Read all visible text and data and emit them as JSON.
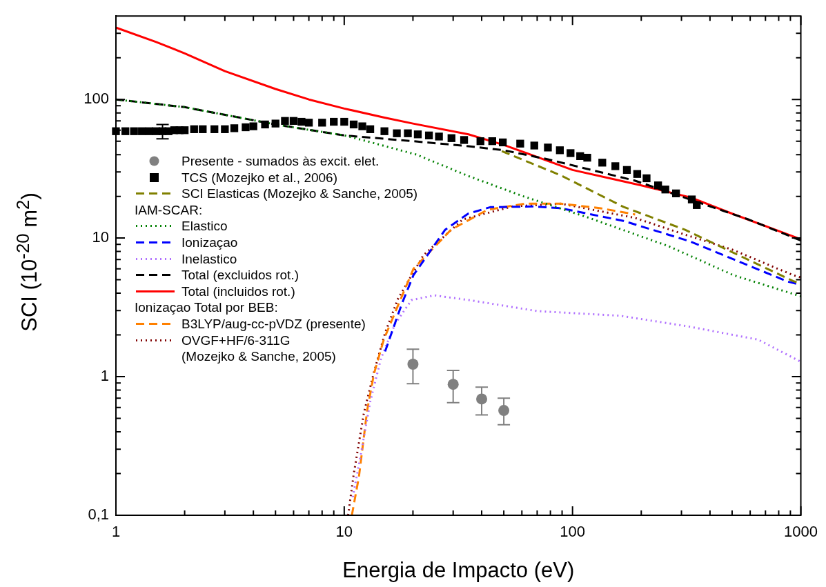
{
  "chart_data": {
    "type": "line",
    "xlabel": "Energia de Impacto (eV)",
    "ylabel": "SCI (10$^{-20}$ m$^{2}$)",
    "log": "xy",
    "grid": false,
    "legend": "left",
    "annotations": [
      "IAM-SCAR:",
      "Ionizaçao Total por BEB:"
    ],
    "xlim": [
      1,
      1000
    ],
    "ylim": [
      0.1,
      400
    ],
    "xticks": [
      1,
      {
        "value": 2,
        "label": null
      },
      {
        "value": 3,
        "label": null
      },
      {
        "value": 4,
        "label": null
      },
      {
        "value": 5,
        "label": null
      },
      {
        "value": 6,
        "label": null
      },
      {
        "value": 7,
        "label": null
      },
      {
        "value": 8,
        "label": null
      },
      {
        "value": 9,
        "label": null
      },
      10,
      {
        "value": 20,
        "label": null
      },
      {
        "value": 30,
        "label": null
      },
      {
        "value": 40,
        "label": null
      },
      {
        "value": 50,
        "label": null
      },
      {
        "value": 60,
        "label": null
      },
      {
        "value": 70,
        "label": null
      },
      {
        "value": 80,
        "label": null
      },
      {
        "value": 90,
        "label": null
      },
      100,
      {
        "value": 200,
        "label": null
      },
      {
        "value": 300,
        "label": null
      },
      {
        "value": 400,
        "label": null
      },
      {
        "value": 500,
        "label": null
      },
      {
        "value": 600,
        "label": null
      },
      {
        "value": 700,
        "label": null
      },
      {
        "value": 800,
        "label": null
      },
      {
        "value": 900,
        "label": null
      },
      1000
    ],
    "yticks": [
      {
        "value": 0.1,
        "label": "0,1"
      },
      {
        "value": 0.2,
        "label": null
      },
      {
        "value": 0.3,
        "label": null
      },
      {
        "value": 0.4,
        "label": null
      },
      {
        "value": 0.5,
        "label": null
      },
      {
        "value": 0.6,
        "label": null
      },
      {
        "value": 0.7,
        "label": null
      },
      {
        "value": 0.8,
        "label": null
      },
      {
        "value": 0.9,
        "label": null
      },
      1,
      {
        "value": 2,
        "label": null
      },
      {
        "value": 3,
        "label": null
      },
      {
        "value": 4,
        "label": null
      },
      {
        "value": 5,
        "label": null
      },
      {
        "value": 6,
        "label": null
      },
      {
        "value": 7,
        "label": null
      },
      {
        "value": 8,
        "label": null
      },
      {
        "value": 9,
        "label": null
      },
      10,
      {
        "value": 20,
        "label": null
      },
      {
        "value": 30,
        "label": null
      },
      {
        "value": 40,
        "label": null
      },
      {
        "value": 50,
        "label": null
      },
      {
        "value": 60,
        "label": null
      },
      {
        "value": 70,
        "label": null
      },
      {
        "value": 80,
        "label": null
      },
      {
        "value": 90,
        "label": null
      },
      100,
      {
        "value": 200,
        "label": null
      },
      {
        "value": 300,
        "label": null
      }
    ],
    "series": [
      {
        "name": "Presente - sumados às excit. elet.",
        "type": "scatter",
        "marker": "circle",
        "color": "#808080",
        "x": [
          20,
          30,
          40,
          50
        ],
        "values": [
          1.23,
          0.88,
          0.69,
          0.57
        ],
        "errors": [
          [
            0.89,
            1.58
          ],
          [
            0.65,
            1.11
          ],
          [
            0.53,
            0.84
          ],
          [
            0.45,
            0.7
          ]
        ]
      },
      {
        "name": "TCS (Mozejko et al., 2006)",
        "type": "scatter",
        "marker": "square",
        "color": "#000000",
        "x": [
          1,
          1.1,
          1.2,
          1.3,
          1.4,
          1.5,
          1.6,
          1.7,
          1.8,
          1.9,
          2,
          2.2,
          2.4,
          2.7,
          3,
          3.3,
          3.7,
          4,
          4.5,
          5,
          5.5,
          6,
          6.5,
          7,
          8,
          9,
          10,
          11,
          12,
          13,
          15,
          17,
          19,
          21,
          23.5,
          26,
          29.5,
          33.5,
          39.5,
          44.5,
          49.5,
          59,
          68,
          78,
          88,
          98,
          108,
          116,
          135,
          154,
          173,
          192,
          211,
          237,
          255,
          284,
          333,
          350
        ],
        "values": [
          59,
          59,
          59,
          59,
          59,
          59,
          59,
          59,
          60,
          60,
          60,
          61,
          61,
          61,
          61,
          62,
          63,
          64,
          66,
          67,
          70,
          70,
          69,
          68,
          68,
          69,
          69,
          66,
          64,
          61,
          59,
          57,
          57,
          56,
          55,
          54,
          52.6,
          51,
          50,
          50,
          49,
          48,
          46.5,
          45,
          43,
          41,
          39,
          38,
          35,
          33,
          31,
          29,
          27,
          24,
          22.4,
          21,
          19,
          17.3
        ],
        "errors": [
          null,
          null,
          null,
          null,
          null,
          null,
          [
            52,
            66
          ],
          null,
          null,
          null,
          null,
          null,
          null,
          null,
          null,
          null,
          null,
          null,
          null,
          null,
          null,
          null,
          null,
          null,
          null,
          null,
          null,
          null,
          null,
          null,
          null,
          null,
          null,
          null,
          null,
          null,
          null,
          null,
          null,
          null,
          null,
          null,
          null,
          null,
          null,
          null,
          null,
          null,
          null,
          null,
          null,
          null,
          null,
          null,
          null,
          null,
          null,
          null
        ]
      },
      {
        "name": "SCI Elasticas (Mozejko & Sanche, 2005)",
        "line_style": "dashed",
        "color": "#808000",
        "x": [
          49,
          89,
          167,
          310,
          924,
          1000
        ],
        "values": [
          42.4,
          28.3,
          16.8,
          11.5,
          4.9,
          4.7
        ]
      },
      {
        "name": "Elastico",
        "line_style": "dotted",
        "color": "#008000",
        "x": [
          1,
          2,
          5,
          10,
          12,
          20.7,
          35,
          61,
          118,
          265,
          506,
          1000
        ],
        "values": [
          100,
          88,
          66,
          55,
          51,
          40,
          28,
          20,
          14,
          8.7,
          5.4,
          3.8
        ]
      },
      {
        "name": "Ionizaçao",
        "line_style": "dashed",
        "color": "#0000ff",
        "x": [
          15.1,
          17.9,
          20.1,
          27.7,
          34.9,
          43.6,
          68,
          89,
          167,
          325,
          877,
          1000
        ],
        "values": [
          1.52,
          3.37,
          5.4,
          11.5,
          15,
          16.7,
          16.9,
          16.4,
          13.3,
          9.5,
          4.85,
          4.6
        ]
      },
      {
        "name": "Inelastico",
        "line_style": "dotted",
        "color": "#b070ff",
        "x": [
          10.9,
          11.8,
          13,
          14.5,
          16.7,
          19.7,
          24.8,
          35.2,
          70.3,
          162,
          323,
          650,
          1000
        ],
        "values": [
          0.135,
          0.27,
          0.66,
          1.36,
          2.4,
          3.57,
          3.86,
          3.57,
          2.97,
          2.75,
          2.3,
          1.85,
          1.28
        ]
      },
      {
        "name": "Total (excluidos rot.)",
        "line_style": "dashed",
        "color": "#000000",
        "x": [
          1,
          2,
          5,
          10,
          20,
          35,
          50,
          78,
          187,
          591,
          1000
        ],
        "values": [
          100,
          88,
          66,
          55,
          50,
          46,
          43,
          37,
          26,
          13.6,
          9.6
        ]
      },
      {
        "name": "Total (incluidos rot.)",
        "line_style": "solid",
        "color": "#ff0000",
        "x": [
          1,
          1.5,
          2,
          3,
          5,
          7,
          10,
          15,
          20,
          35,
          50,
          100,
          200,
          330,
          500,
          1000
        ],
        "values": [
          330,
          260,
          215,
          160,
          119,
          100,
          86,
          74,
          67,
          56,
          47,
          31,
          24,
          19.6,
          15,
          9.8
        ]
      },
      {
        "name": "B3LYP/aug-cc-pVDZ (presente)",
        "line_style": "dashed",
        "color": "#ff8000",
        "x": [
          10.8,
          11.6,
          12.6,
          13.5,
          14.9,
          17.2,
          20.1,
          29.4,
          42.4,
          61.7,
          89,
          133,
          188
        ],
        "values": [
          0.1,
          0.19,
          0.57,
          1.05,
          1.85,
          3.26,
          6,
          11.5,
          16,
          17.7,
          17.7,
          16.4,
          14.8
        ]
      },
      {
        "name": "OVGF+HF/6-311G\n(Mozejko & Sanche, 2005)",
        "line_style": "dotted",
        "color": "#800000",
        "x": [
          10.4,
          11,
          12.2,
          13.5,
          15.1,
          17.2,
          22.2,
          33,
          54.5,
          89,
          187,
          310,
          506,
          924,
          1000
        ],
        "values": [
          0.1,
          0.197,
          0.55,
          1.08,
          2.07,
          3.65,
          7.5,
          13.6,
          16.9,
          17.7,
          14,
          10.6,
          8.2,
          5.4,
          5.2
        ]
      }
    ]
  }
}
